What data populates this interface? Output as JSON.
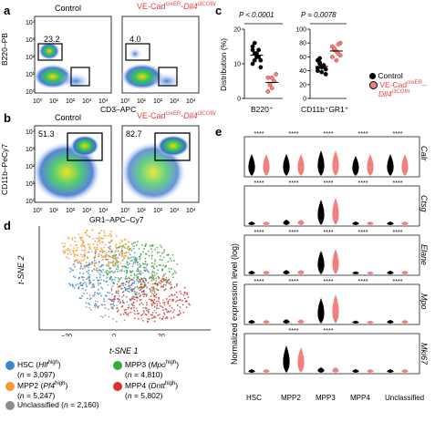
{
  "panels": {
    "a": {
      "letter": "a",
      "control_title": "Control",
      "mutant_title_parts": [
        "VE-Cad",
        "creER",
        "-",
        "Dll4",
        "i3COIN"
      ],
      "ylabel": "B220–PB",
      "xlabel": "CD3–APC",
      "control_percent": "23.2",
      "mutant_percent": "4.0",
      "ticks": [
        "10⁰",
        "10¹",
        "10²",
        "10³",
        "10⁴"
      ]
    },
    "b": {
      "letter": "b",
      "control_title": "Control",
      "mutant_title_parts": [
        "VE-Cad",
        "creER",
        "-",
        "Dll4",
        "i3COIN"
      ],
      "ylabel": "CD11b–PeCy7",
      "xlabel": "GR1–APC–Cy7",
      "control_percent": "51.3",
      "mutant_percent": "82.7",
      "ticks": [
        "10⁰",
        "10¹",
        "10²",
        "10³",
        "10⁴"
      ]
    },
    "c": {
      "letter": "c",
      "p_left": "P < 0.0001",
      "p_right": "P = 0.0078",
      "ylabel": "Distribution (%)",
      "xlabels": [
        "B220⁺",
        "CD11b⁺GR1⁺"
      ],
      "legend_control": "Control",
      "legend_mutant_parts": [
        "VE-Cad",
        "creER",
        "–",
        "Dll4",
        "i3COIN"
      ]
    },
    "d": {
      "letter": "d",
      "xlabel": "t-SNE 1",
      "ylabel": "t-SNE 2",
      "legend": [
        {
          "name_prefix": "HSC (",
          "gene": "Hlf",
          "sup": "high",
          "name_suffix": ")",
          "n": "(n = 3,097)",
          "color": "#3a86c8"
        },
        {
          "name_prefix": "MPP3 (",
          "gene": "Mpo",
          "sup": "high",
          "name_suffix": ")",
          "n": "(n = 4,810)",
          "color": "#3aa83a"
        },
        {
          "name_prefix": "MPP2 (",
          "gene": "Pf4",
          "sup": "high",
          "name_suffix": ")",
          "n": "(n = 5,247)",
          "color": "#f39a2b"
        },
        {
          "name_prefix": "MPP4 (",
          "gene": "Dntt",
          "sup": "high",
          "name_suffix": ")",
          "n": "(n = 5,802)",
          "color": "#d8322e"
        },
        {
          "name_prefix": "Unclassified ",
          "gene": "",
          "sup": "",
          "name_suffix": "",
          "n": "(n = 2,160)",
          "color": "#8c8c8c"
        }
      ]
    },
    "e": {
      "letter": "e",
      "ylabel": "Normalized expression level (log)",
      "genes": [
        "Calr",
        "Ctsg",
        "Elane",
        "Mpo",
        "Mki67"
      ],
      "groups": [
        "HSC",
        "MPP2",
        "MPP3",
        "MPP4",
        "Unclassified"
      ],
      "stars": "****"
    }
  },
  "colors": {
    "control": "#000000",
    "mutant": "#f08080",
    "red_text": "#e8433f"
  },
  "chart_data": [
    {
      "type": "scatter",
      "title": "",
      "xlabel": "",
      "ylabel": "Distribution (%)",
      "ylim": [
        0,
        20
      ],
      "yticks": [
        0,
        10,
        20
      ],
      "categories": [
        "B220⁺"
      ],
      "series": [
        {
          "name": "Control",
          "values": [
            15,
            13,
            12,
            14,
            11,
            10,
            16,
            13,
            12,
            9,
            14,
            11
          ]
        },
        {
          "name": "VE-CadcreER–Dll4i3COIN",
          "values": [
            6,
            4,
            3,
            5,
            7,
            2,
            4,
            6
          ]
        }
      ]
    },
    {
      "type": "scatter",
      "title": "",
      "xlabel": "",
      "ylabel": "",
      "ylim": [
        0,
        100
      ],
      "yticks": [
        0,
        20,
        40,
        60,
        80,
        100
      ],
      "categories": [
        "CD11b⁺GR1⁺"
      ],
      "series": [
        {
          "name": "Control",
          "values": [
            55,
            50,
            45,
            48,
            42,
            40,
            52,
            38,
            46,
            35,
            44,
            58
          ]
        },
        {
          "name": "VE-CadcreER–Dll4i3COIN",
          "values": [
            75,
            70,
            68,
            65,
            80,
            60,
            72,
            55,
            78,
            62
          ]
        }
      ]
    }
  ]
}
